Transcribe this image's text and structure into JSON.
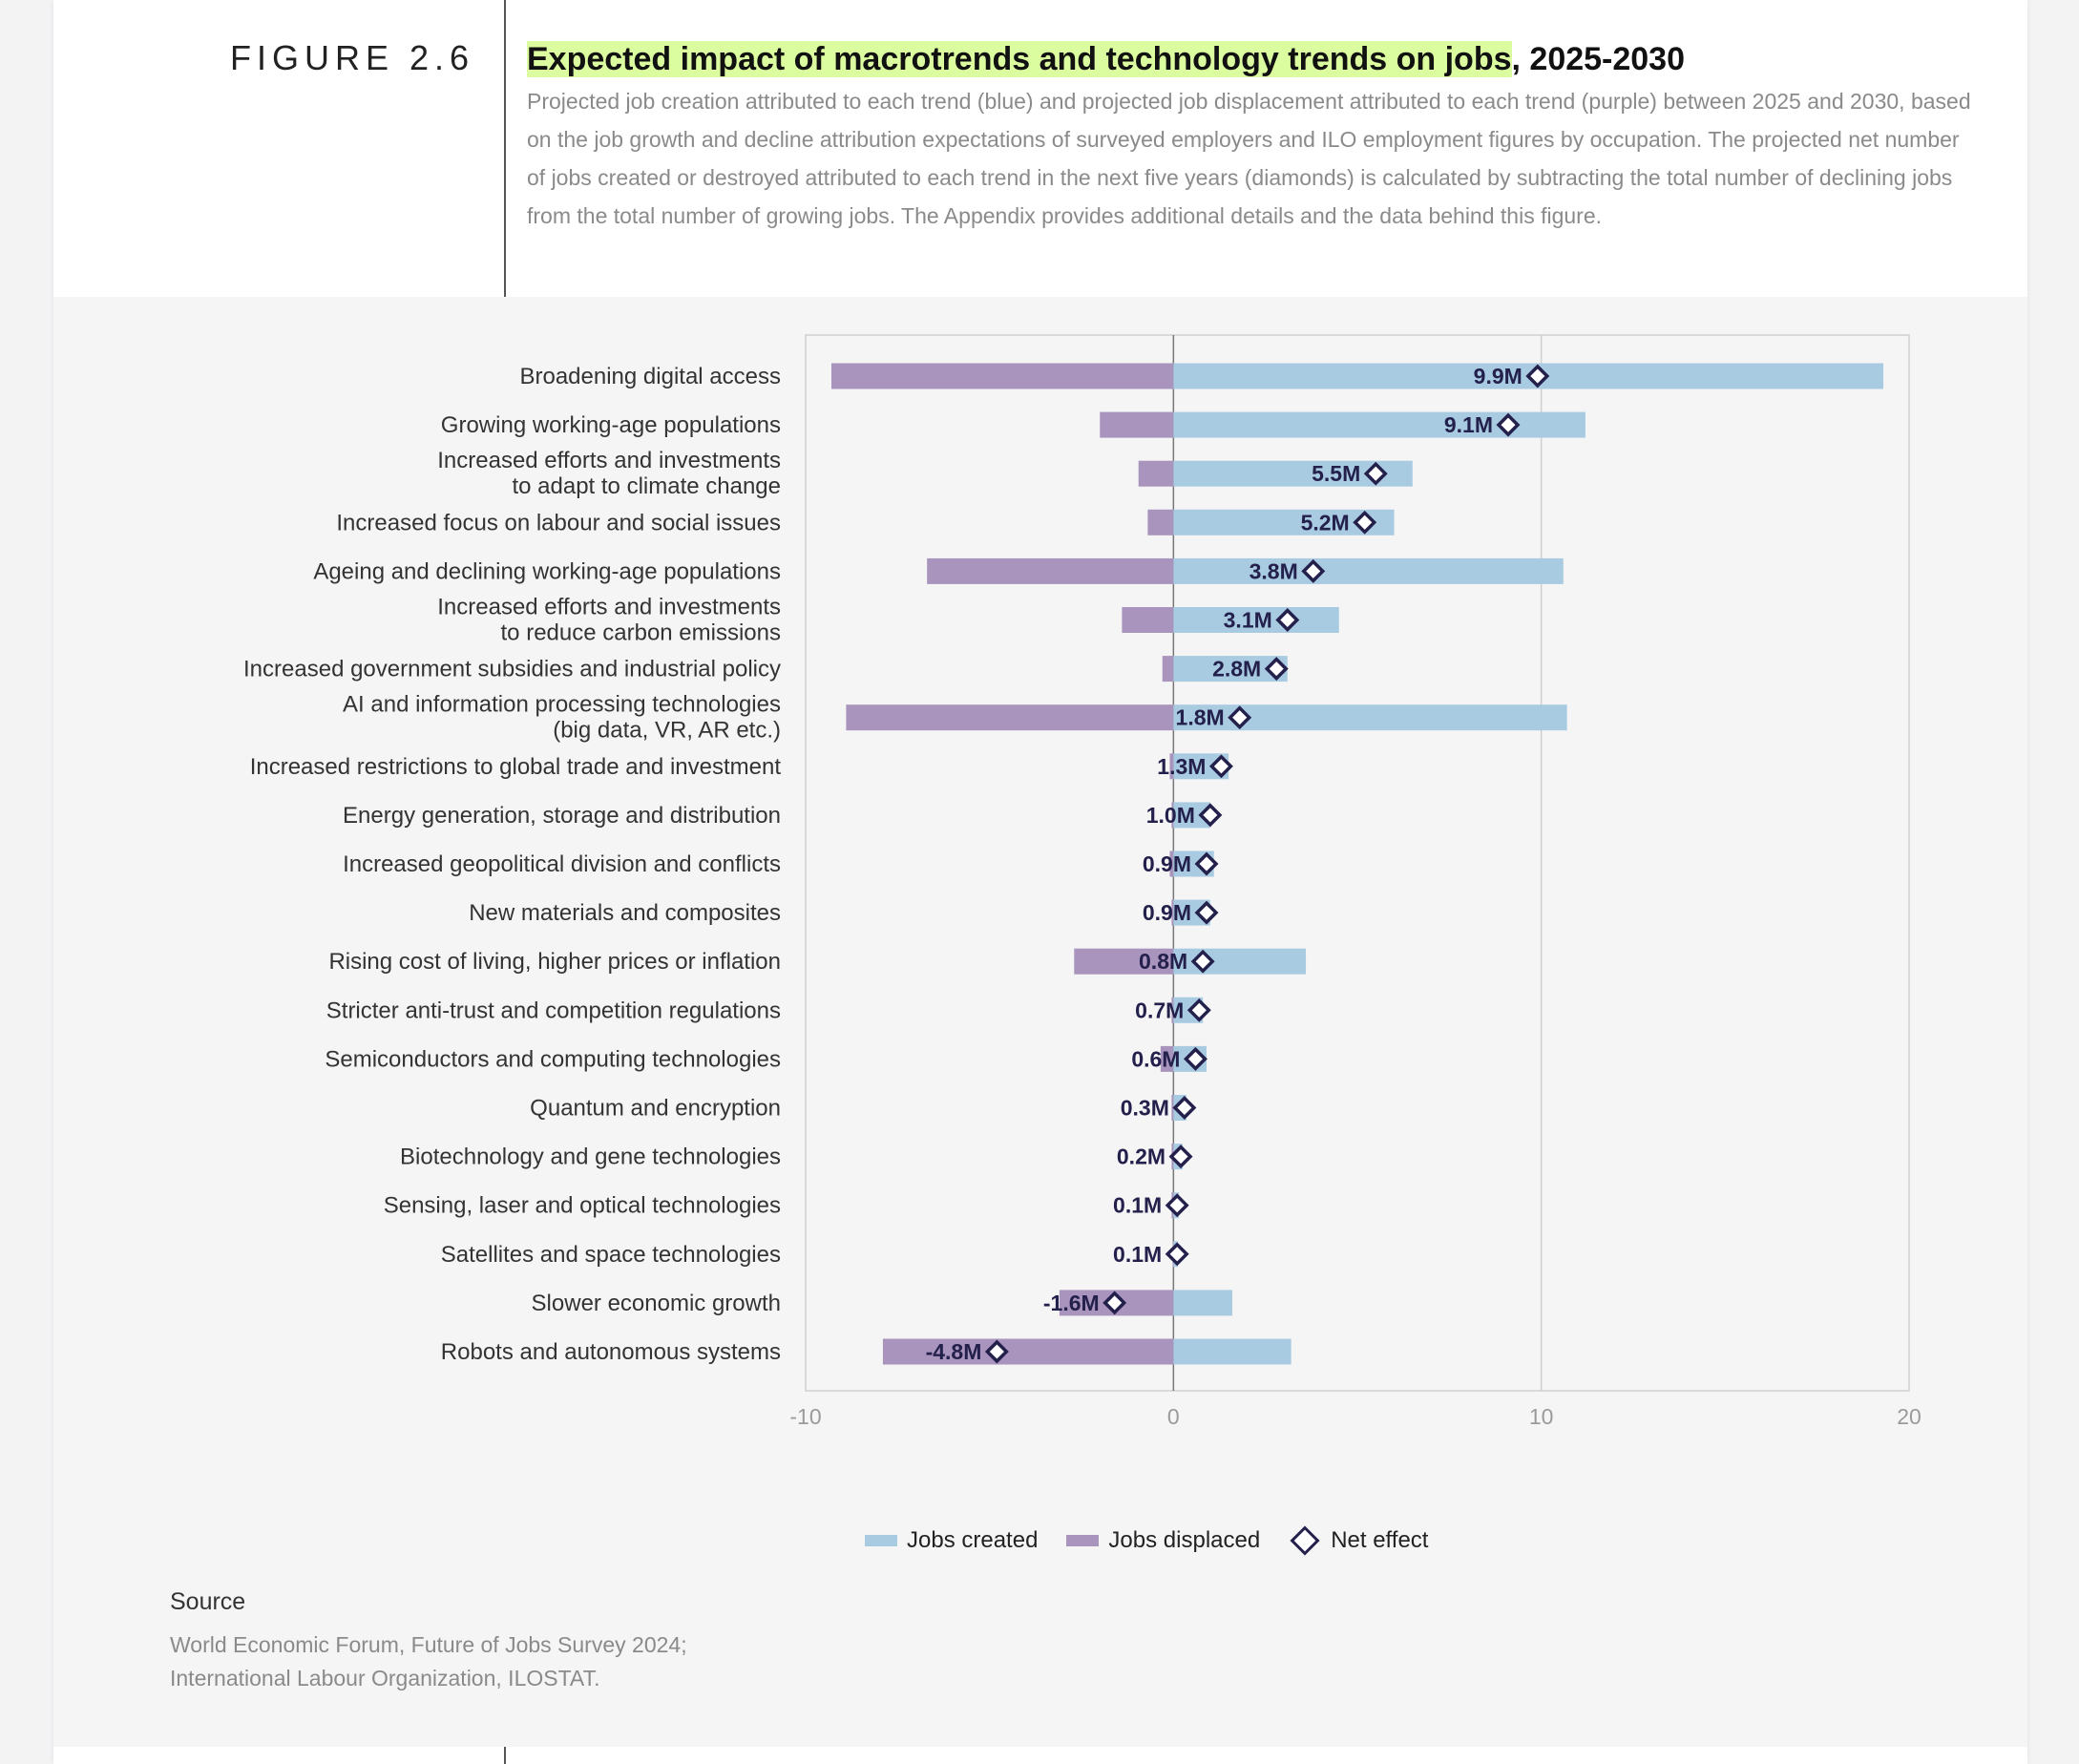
{
  "figure_label": "FIGURE 2.6",
  "title_highlight": "Expected impact of macrotrends and technology trends on jobs",
  "title_rest": ", 2025-2030",
  "subtitle": "Projected job creation attributed to each trend (blue) and projected job displacement attributed to each trend (purple) between 2025 and 2030, based on the job growth and decline attribution expectations of surveyed employers and ILO employment figures by occupation. The projected net number of jobs created or destroyed attributed to each trend in the next five years (diamonds) is calculated by subtracting the total number of declining jobs from the total number of growing jobs. The Appendix provides additional details and the data behind this figure.",
  "legend": {
    "created": "Jobs created",
    "displaced": "Jobs displaced",
    "net": "Net effect"
  },
  "source": {
    "label": "Source",
    "text_line1": "World Economic Forum, Future of Jobs Survey 2024;",
    "text_line2": "International Labour Organization, ILOSTAT."
  },
  "colors": {
    "created": "#a9cbe2",
    "displaced": "#a894bc",
    "net": "#23204c",
    "highlight": "#dcfca0"
  },
  "chart_data": {
    "type": "bar",
    "orientation": "horizontal",
    "xlim": [
      -10,
      20
    ],
    "xticks": [
      "-10",
      "0",
      "10",
      "20"
    ],
    "grid": true,
    "legend_position": "bottom",
    "categories": [
      [
        "Broadening digital access"
      ],
      [
        "Growing working-age populations"
      ],
      [
        "Increased efforts and investments",
        "to adapt to climate change"
      ],
      [
        "Increased focus on labour and social issues"
      ],
      [
        "Ageing and declining working-age populations"
      ],
      [
        "Increased efforts and investments",
        "to reduce carbon emissions"
      ],
      [
        "Increased government subsidies and industrial policy"
      ],
      [
        "AI and information processing technologies",
        "(big data, VR, AR etc.)"
      ],
      [
        "Increased restrictions to global trade and investment"
      ],
      [
        "Energy generation, storage and distribution"
      ],
      [
        "Increased geopolitical division and conflicts"
      ],
      [
        "New materials and composites"
      ],
      [
        "Rising cost of living, higher prices or inflation"
      ],
      [
        "Stricter anti-trust and competition regulations"
      ],
      [
        "Semiconductors and computing technologies"
      ],
      [
        "Quantum and encryption"
      ],
      [
        "Biotechnology and gene technologies"
      ],
      [
        "Sensing, laser and optical technologies"
      ],
      [
        "Satellites and space technologies"
      ],
      [
        "Slower economic growth"
      ],
      [
        "Robots and autonomous systems"
      ]
    ],
    "series": [
      {
        "name": "Jobs created",
        "values": [
          19.3,
          11.2,
          6.5,
          6.0,
          10.6,
          4.5,
          3.1,
          10.7,
          1.5,
          1.0,
          1.1,
          1.0,
          3.6,
          0.8,
          0.9,
          0.35,
          0.25,
          0.15,
          0.12,
          1.6,
          3.2
        ]
      },
      {
        "name": "Jobs displaced",
        "values": [
          -9.3,
          -2.0,
          -0.95,
          -0.7,
          -6.7,
          -1.4,
          -0.3,
          -8.9,
          -0.1,
          -0.05,
          -0.1,
          -0.05,
          -2.7,
          -0.05,
          -0.35,
          -0.05,
          -0.05,
          -0.05,
          -0.02,
          -3.1,
          -7.9
        ]
      },
      {
        "name": "Net effect",
        "values": [
          9.9,
          9.1,
          5.5,
          5.2,
          3.8,
          3.1,
          2.8,
          1.8,
          1.3,
          1.0,
          0.9,
          0.9,
          0.8,
          0.7,
          0.6,
          0.3,
          0.2,
          0.1,
          0.1,
          -1.6,
          -4.8
        ]
      }
    ],
    "net_labels": [
      "9.9M",
      "9.1M",
      "5.5M",
      "5.2M",
      "3.8M",
      "3.1M",
      "2.8M",
      "1.8M",
      "1.3M",
      "1.0M",
      "0.9M",
      "0.9M",
      "0.8M",
      "0.7M",
      "0.6M",
      "0.3M",
      "0.2M",
      "0.1M",
      "0.1M",
      "-1.6M",
      "-4.8M"
    ]
  }
}
